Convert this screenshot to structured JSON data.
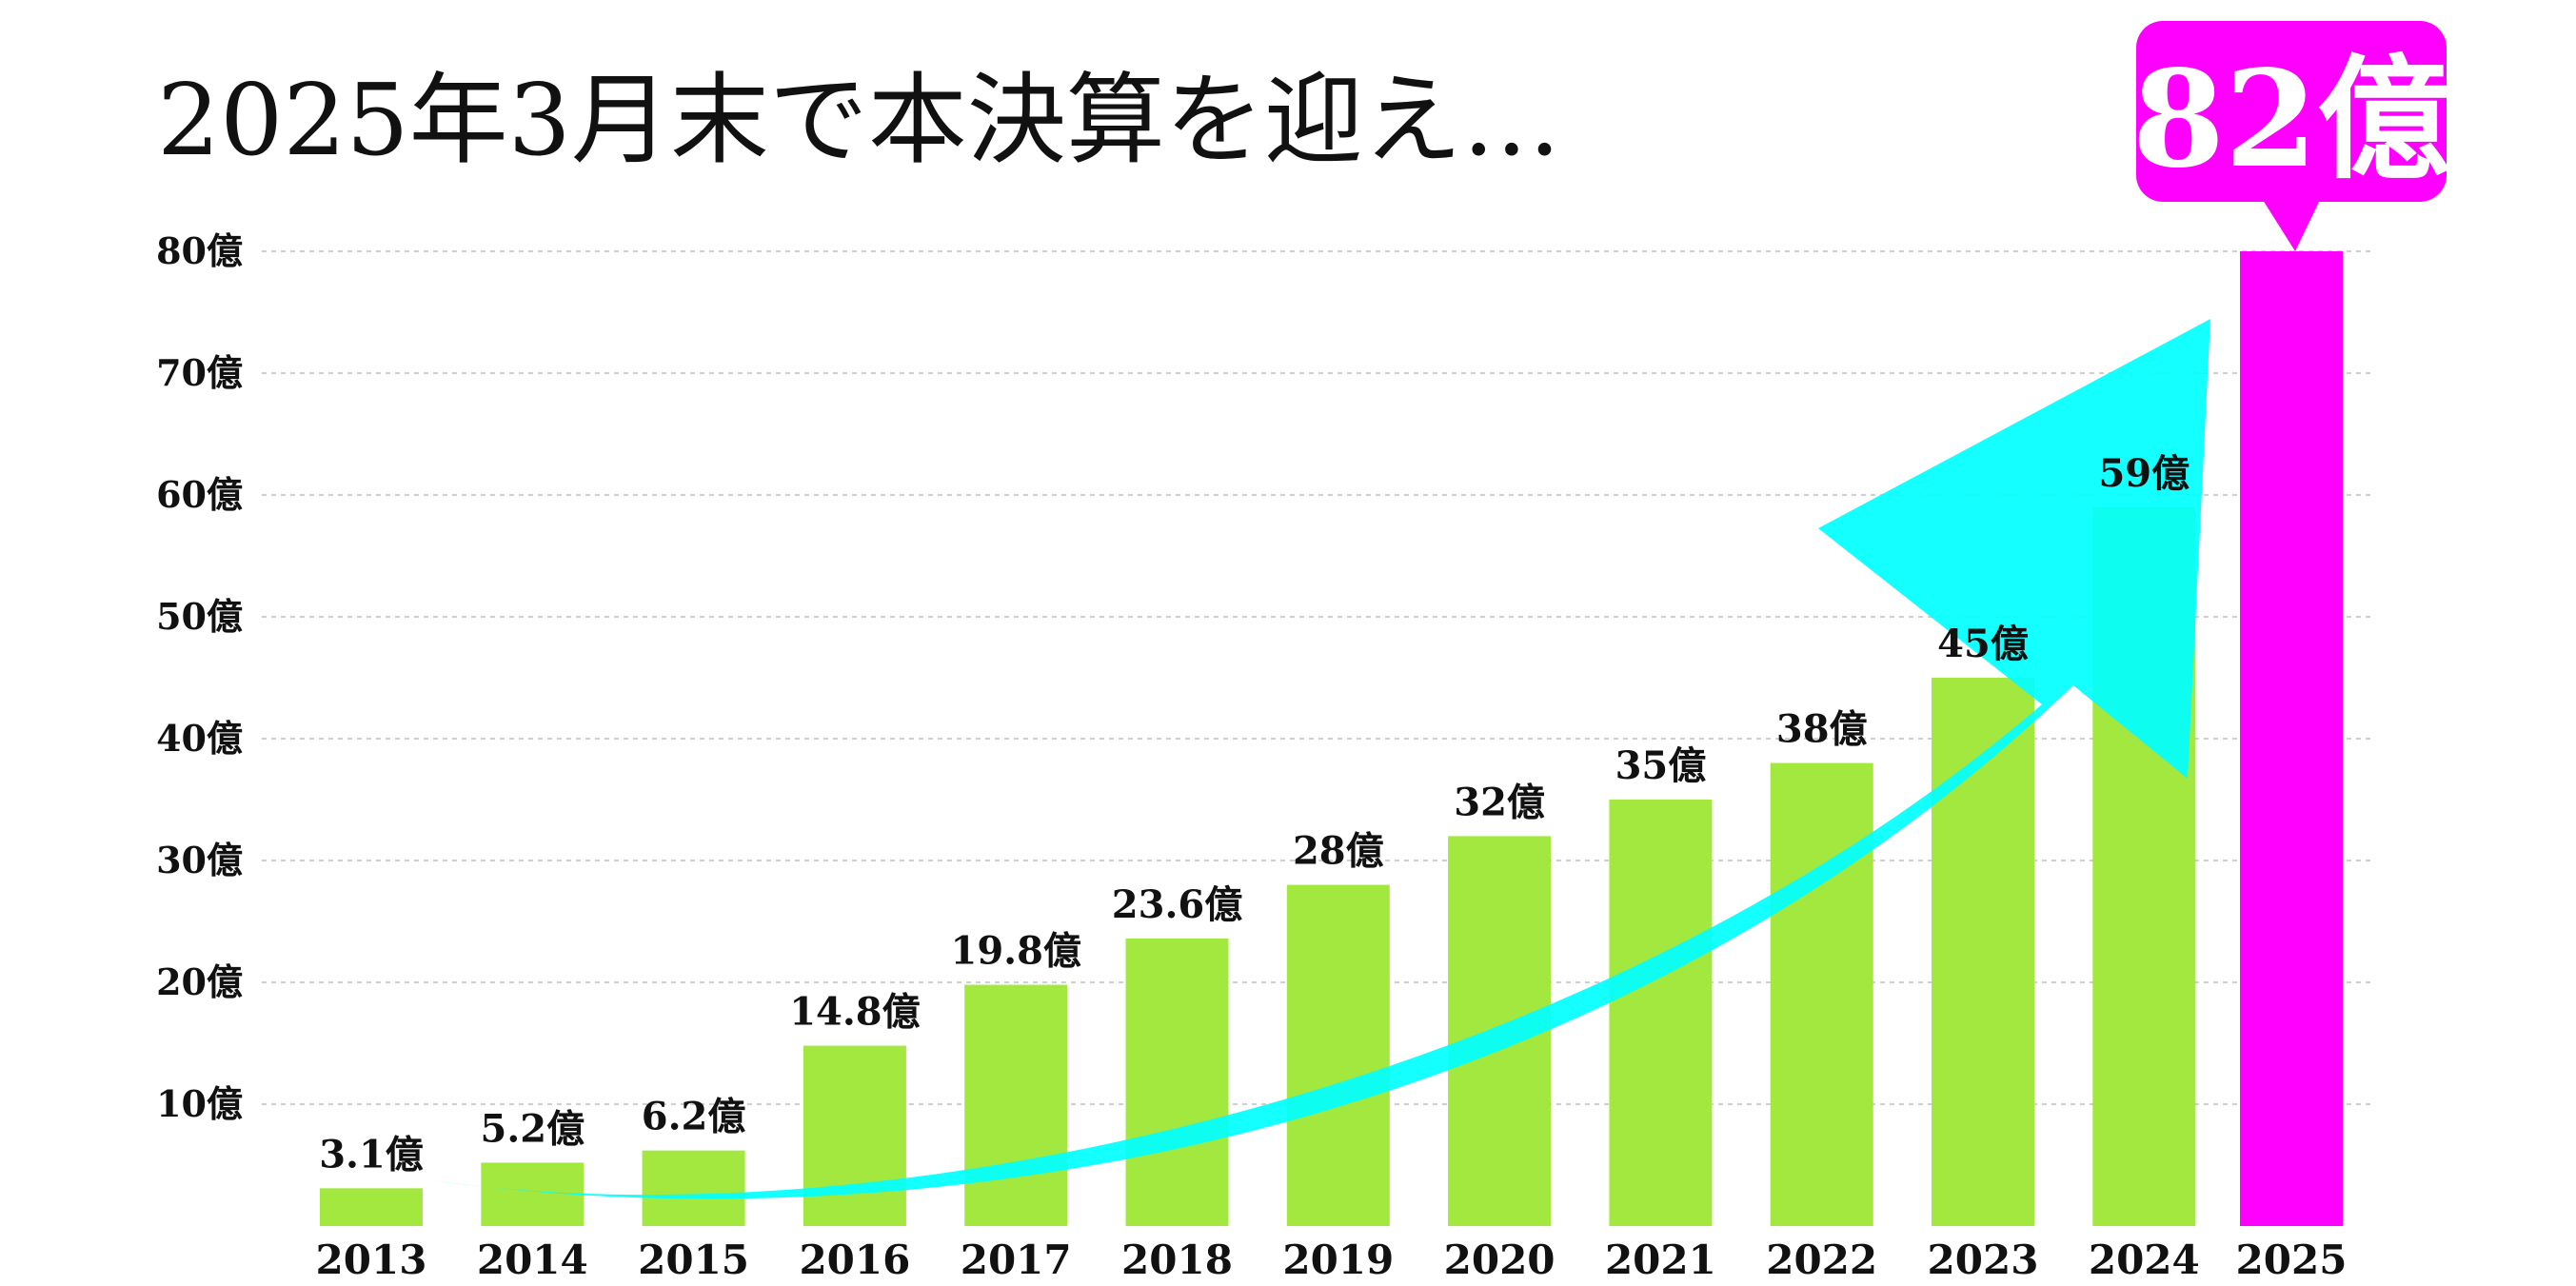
{
  "chart_data": {
    "type": "bar",
    "title": "2025年3月末で本決算を迎え…",
    "categories": [
      "2013",
      "2014",
      "2015",
      "2016",
      "2017",
      "2018",
      "2019",
      "2020",
      "2021",
      "2022",
      "2023",
      "2024",
      "2025"
    ],
    "values": [
      3.1,
      5.2,
      6.2,
      14.8,
      19.8,
      23.6,
      28,
      32,
      35,
      38,
      45,
      59,
      82
    ],
    "data_labels": [
      "3.1億",
      "5.2億",
      "6.2億",
      "14.8億",
      "19.8億",
      "23.6億",
      "28億",
      "32億",
      "35億",
      "38億",
      "45億",
      "59億",
      ""
    ],
    "y_tick_labels": [
      "10億",
      "20億",
      "30億",
      "40億",
      "50億",
      "60億",
      "70億",
      "80億"
    ],
    "y_tick_values": [
      10,
      20,
      30,
      40,
      50,
      60,
      70,
      80
    ],
    "ylim": [
      0,
      80
    ],
    "grid": true,
    "grid_style": "dashed",
    "highlight": {
      "category": "2025",
      "value": 82,
      "label": "82億"
    },
    "colors": {
      "bar": "#a2e83f",
      "highlight_bar": "#ff00ff",
      "callout": "#ff00ff",
      "trend_arrow": "#00ffff"
    },
    "annotation": "trend-arrow"
  }
}
